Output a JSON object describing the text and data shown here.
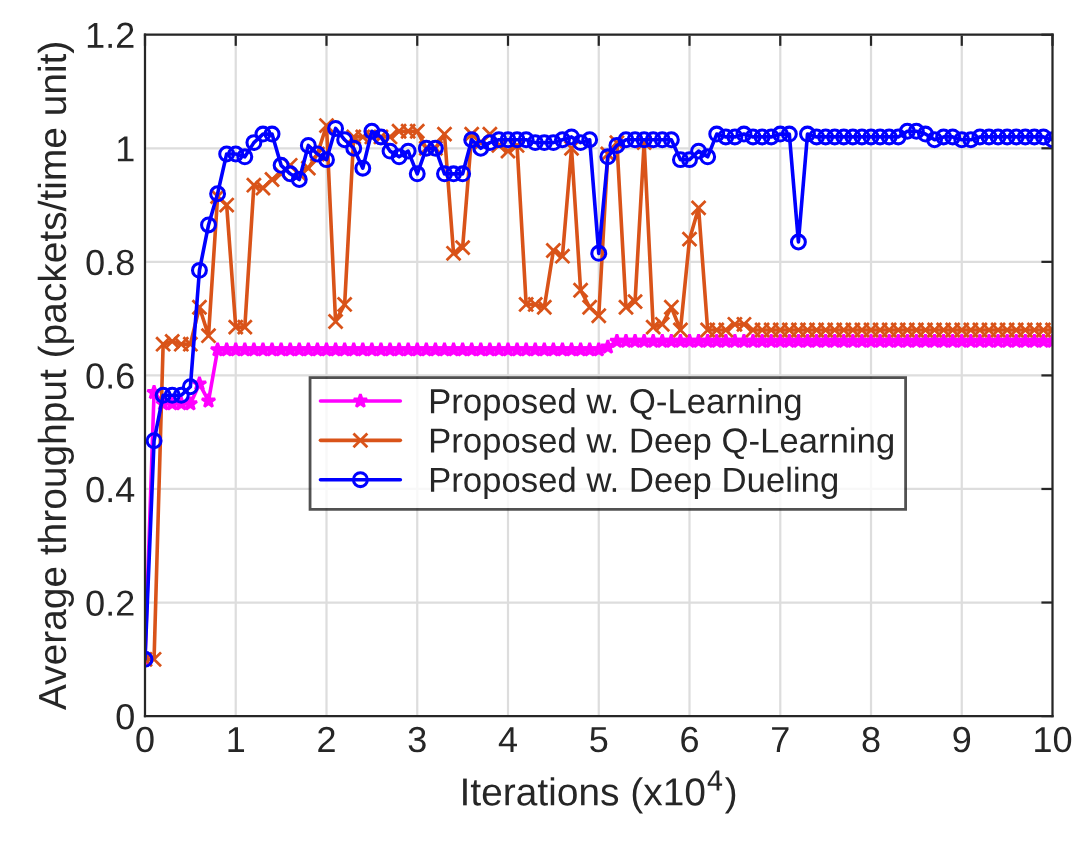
{
  "chart_data": {
    "type": "line",
    "xlabel": "Iterations (x10$^{4}$)",
    "ylabel": "Average throughput (packets/time unit)",
    "x": [
      0,
      0.1,
      0.2,
      0.3,
      0.4,
      0.5,
      0.6,
      0.7,
      0.8,
      0.9,
      1,
      1.1,
      1.2,
      1.3,
      1.4,
      1.5,
      1.6,
      1.7,
      1.8,
      1.9,
      2,
      2.1,
      2.2,
      2.3,
      2.4,
      2.5,
      2.6,
      2.7,
      2.8,
      2.9,
      3,
      3.1,
      3.2,
      3.3,
      3.4,
      3.5,
      3.6,
      3.7,
      3.8,
      3.9,
      4,
      4.1,
      4.2,
      4.3,
      4.4,
      4.5,
      4.6,
      4.7,
      4.8,
      4.9,
      5,
      5.1,
      5.2,
      5.3,
      5.4,
      5.5,
      5.6,
      5.7,
      5.8,
      5.9,
      6,
      6.1,
      6.2,
      6.3,
      6.4,
      6.5,
      6.6,
      6.7,
      6.8,
      6.9,
      7,
      7.1,
      7.2,
      7.3,
      7.4,
      7.5,
      7.6,
      7.7,
      7.8,
      7.9,
      8,
      8.1,
      8.2,
      8.3,
      8.4,
      8.5,
      8.6,
      8.7,
      8.8,
      8.9,
      9,
      9.1,
      9.2,
      9.3,
      9.4,
      9.5,
      9.6,
      9.7,
      9.8,
      9.9,
      10
    ],
    "series": [
      {
        "name": "Proposed w. Q-Learning",
        "color": "#ff00ff",
        "marker": "star",
        "values": [
          0.1,
          0.57,
          0.55,
          0.55,
          0.55,
          0.55,
          0.585,
          0.555,
          0.645,
          0.645,
          0.645,
          0.645,
          0.645,
          0.645,
          0.645,
          0.645,
          0.645,
          0.645,
          0.645,
          0.645,
          0.645,
          0.645,
          0.645,
          0.645,
          0.645,
          0.645,
          0.645,
          0.645,
          0.645,
          0.645,
          0.645,
          0.645,
          0.645,
          0.645,
          0.645,
          0.645,
          0.645,
          0.645,
          0.645,
          0.645,
          0.645,
          0.645,
          0.645,
          0.645,
          0.645,
          0.645,
          0.645,
          0.645,
          0.645,
          0.645,
          0.645,
          0.65,
          0.66,
          0.66,
          0.66,
          0.66,
          0.66,
          0.66,
          0.66,
          0.66,
          0.66,
          0.66,
          0.66,
          0.66,
          0.66,
          0.66,
          0.66,
          0.66,
          0.66,
          0.66,
          0.66,
          0.66,
          0.66,
          0.66,
          0.66,
          0.66,
          0.66,
          0.66,
          0.66,
          0.66,
          0.66,
          0.66,
          0.66,
          0.66,
          0.66,
          0.66,
          0.66,
          0.66,
          0.66,
          0.66,
          0.66,
          0.66,
          0.66,
          0.66,
          0.66,
          0.66,
          0.66,
          0.66,
          0.66,
          0.66,
          0.66
        ]
      },
      {
        "name": "Proposed w. Deep Q-Learning",
        "color": "#d95319",
        "marker": "cross",
        "values": [
          0.1,
          0.1,
          0.655,
          0.66,
          0.655,
          0.655,
          0.72,
          0.67,
          0.915,
          0.9,
          0.685,
          0.685,
          0.935,
          0.93,
          0.945,
          0.955,
          0.97,
          0.955,
          0.965,
          0.99,
          1.04,
          0.695,
          0.725,
          1.02,
          1.02,
          1.02,
          1.02,
          1.02,
          1.03,
          1.03,
          1.03,
          1.0,
          1.0,
          1.025,
          0.815,
          0.825,
          1.025,
          1.01,
          1.025,
          1.005,
          0.995,
          1.005,
          0.725,
          0.725,
          0.72,
          0.82,
          0.81,
          1.0,
          0.75,
          0.72,
          0.705,
          0.99,
          1.01,
          0.72,
          0.73,
          1.01,
          0.685,
          0.69,
          0.72,
          0.68,
          0.84,
          0.895,
          0.68,
          0.68,
          0.68,
          0.69,
          0.69,
          0.68,
          0.68,
          0.68,
          0.68,
          0.68,
          0.68,
          0.68,
          0.68,
          0.68,
          0.68,
          0.68,
          0.68,
          0.68,
          0.68,
          0.68,
          0.68,
          0.68,
          0.68,
          0.68,
          0.68,
          0.68,
          0.68,
          0.68,
          0.68,
          0.68,
          0.68,
          0.68,
          0.68,
          0.68,
          0.68,
          0.68,
          0.68,
          0.68,
          0.68
        ]
      },
      {
        "name": "Proposed w. Deep Dueling",
        "color": "#0000ff",
        "marker": "circle",
        "values": [
          0.1,
          0.485,
          0.565,
          0.565,
          0.565,
          0.58,
          0.785,
          0.865,
          0.92,
          0.99,
          0.99,
          0.985,
          1.01,
          1.025,
          1.025,
          0.97,
          0.955,
          0.945,
          1.005,
          0.99,
          0.98,
          1.035,
          1.015,
          1.0,
          0.965,
          1.03,
          1.02,
          0.995,
          0.985,
          0.995,
          0.955,
          1.0,
          1.0,
          0.955,
          0.955,
          0.955,
          1.015,
          1.0,
          1.01,
          1.015,
          1.015,
          1.015,
          1.015,
          1.01,
          1.01,
          1.01,
          1.015,
          1.02,
          1.01,
          1.015,
          0.815,
          0.985,
          1.005,
          1.015,
          1.015,
          1.015,
          1.015,
          1.015,
          1.015,
          0.98,
          0.98,
          0.995,
          0.985,
          1.025,
          1.02,
          1.02,
          1.025,
          1.02,
          1.02,
          1.02,
          1.025,
          1.025,
          0.835,
          1.025,
          1.02,
          1.02,
          1.02,
          1.02,
          1.02,
          1.02,
          1.02,
          1.02,
          1.02,
          1.02,
          1.03,
          1.03,
          1.025,
          1.015,
          1.02,
          1.02,
          1.015,
          1.015,
          1.02,
          1.02,
          1.02,
          1.02,
          1.02,
          1.02,
          1.02,
          1.02,
          1.015
        ]
      }
    ],
    "xlim": [
      0,
      10
    ],
    "xticks": [
      0,
      1,
      2,
      3,
      4,
      5,
      6,
      7,
      8,
      9,
      10
    ],
    "ylim": [
      0,
      1.2
    ],
    "yticks": [
      0,
      0.2,
      0.4,
      0.6,
      0.8,
      1,
      1.2
    ],
    "grid": true,
    "legend": "center"
  }
}
